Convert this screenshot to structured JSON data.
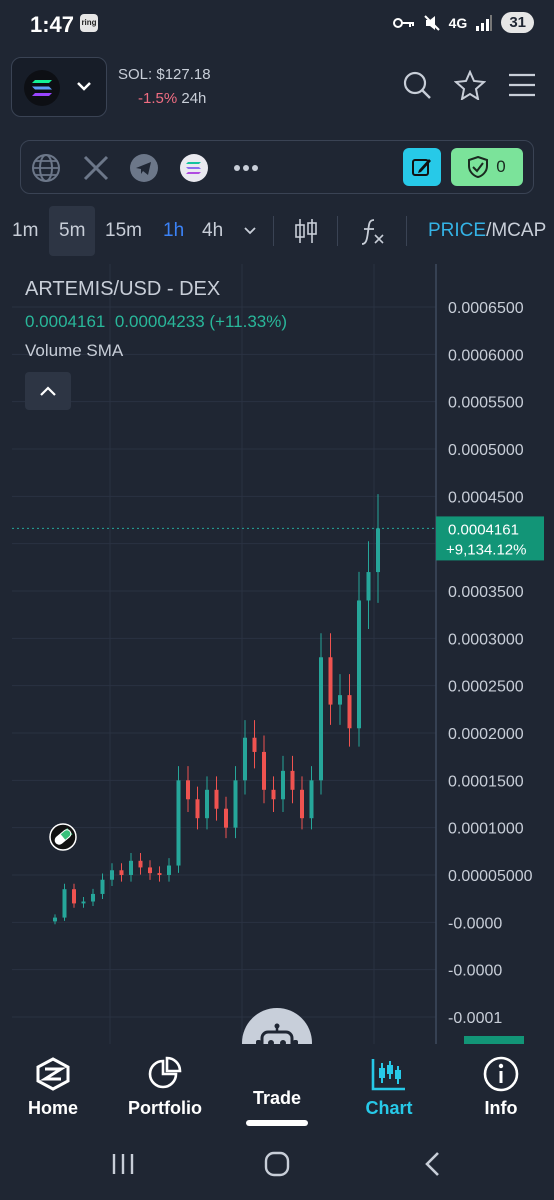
{
  "status": {
    "time": "1:47",
    "ring_badge": "ring",
    "network": "4G",
    "battery": "31"
  },
  "header": {
    "sol_price": "SOL: $127.18",
    "sol_change": "-1.5%",
    "sol_period": "24h"
  },
  "social": {
    "shield_count": "0"
  },
  "timeframes": [
    "1m",
    "5m",
    "15m",
    "1h",
    "4h"
  ],
  "price_mcap": {
    "price": "PRICE",
    "slash": "/",
    "mcap": "MCAP"
  },
  "chart": {
    "title": "ARTEMIS/USD - DEX",
    "ohlc_price": "0.0004161",
    "ohlc_change": "0.00004233",
    "ohlc_pct": "(+11.33%)",
    "indicator": "Volume SMA",
    "current_price": "0.0004161",
    "current_pct": "+9,134.12%"
  },
  "chart_data": {
    "type": "candlestick",
    "title": "ARTEMIS/USD - DEX",
    "y_ticks": [
      "0.0006500",
      "0.0006000",
      "0.0005500",
      "0.0005000",
      "0.0004500",
      "0.0004000",
      "0.0003500",
      "0.0003000",
      "0.0002500",
      "0.0002000",
      "0.0001500",
      "0.0001000",
      "0.00005000",
      "-0.0000",
      "-0.0000",
      "-0.0001"
    ],
    "ylim": [
      -0.0001,
      0.00067
    ],
    "last_price": 0.0004161,
    "closes": [
      5e-06,
      3.5e-05,
      2e-05,
      2.2e-05,
      3e-05,
      4.5e-05,
      5.5e-05,
      5e-05,
      6.5e-05,
      5.8e-05,
      5.2e-05,
      5e-05,
      6e-05,
      0.00015,
      0.00013,
      0.00011,
      0.00014,
      0.00012,
      0.0001,
      0.00015,
      0.000195,
      0.00018,
      0.00014,
      0.00013,
      0.00016,
      0.00014,
      0.00011,
      0.00015,
      0.00028,
      0.00023,
      0.00024,
      0.000205,
      0.00034,
      0.00037,
      0.0004161
    ],
    "colors": {
      "up": "#26a69a",
      "down": "#ef5350"
    }
  },
  "nav": {
    "home": "Home",
    "portfolio": "Portfolio",
    "trade": "Trade",
    "chart": "Chart",
    "info": "Info"
  }
}
